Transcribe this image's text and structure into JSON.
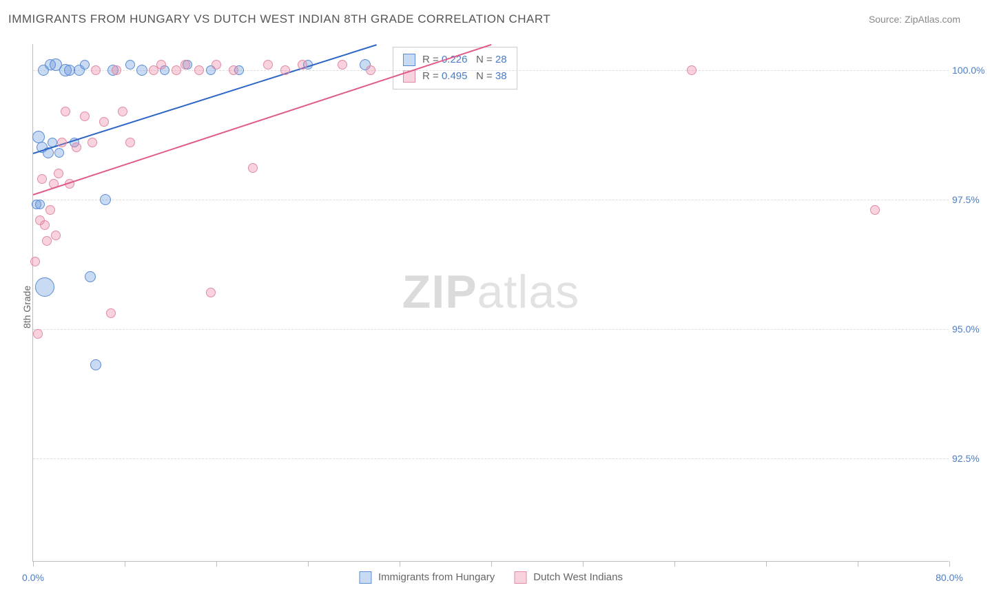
{
  "header": {
    "title": "IMMIGRANTS FROM HUNGARY VS DUTCH WEST INDIAN 8TH GRADE CORRELATION CHART",
    "source_label": "Source: ",
    "source_name": "ZipAtlas.com"
  },
  "chart": {
    "type": "scatter",
    "ylabel": "8th Grade",
    "xlim": [
      0,
      80
    ],
    "ylim": [
      90.5,
      100.5
    ],
    "x_ticks": [
      0,
      8,
      16,
      24,
      32,
      40,
      48,
      56,
      64,
      72,
      80
    ],
    "x_tick_labels": {
      "0": "0.0%",
      "80": "80.0%"
    },
    "y_grid": [
      92.5,
      95.0,
      97.5,
      100.0
    ],
    "y_tick_labels": [
      "92.5%",
      "95.0%",
      "97.5%",
      "100.0%"
    ],
    "background_color": "#ffffff",
    "grid_color": "#dddddd",
    "axis_color": "#bbbbbb",
    "tick_label_color": "#4a7cc9",
    "axis_label_color": "#666666",
    "series": [
      {
        "name": "Immigrants from Hungary",
        "fill": "rgba(100,150,220,0.35)",
        "stroke": "#5b8bd4",
        "trend_color": "#2d66c4",
        "trend": {
          "x1": 0,
          "y1": 98.4,
          "x2": 30,
          "y2": 100.5
        },
        "stats": {
          "r_label": "R = ",
          "r": "0.226",
          "n_label": "N = ",
          "n": "28"
        },
        "points": [
          {
            "x": 0.3,
            "y": 97.4,
            "r": 7
          },
          {
            "x": 0.5,
            "y": 98.7,
            "r": 9
          },
          {
            "x": 0.6,
            "y": 97.4,
            "r": 7
          },
          {
            "x": 0.8,
            "y": 98.5,
            "r": 8
          },
          {
            "x": 0.9,
            "y": 100.0,
            "r": 8
          },
          {
            "x": 1.0,
            "y": 95.8,
            "r": 14
          },
          {
            "x": 1.3,
            "y": 98.4,
            "r": 8
          },
          {
            "x": 1.5,
            "y": 100.1,
            "r": 8
          },
          {
            "x": 1.7,
            "y": 98.6,
            "r": 7
          },
          {
            "x": 2.0,
            "y": 100.1,
            "r": 9
          },
          {
            "x": 2.3,
            "y": 98.4,
            "r": 7
          },
          {
            "x": 2.8,
            "y": 100.0,
            "r": 9
          },
          {
            "x": 3.2,
            "y": 100.0,
            "r": 8
          },
          {
            "x": 3.6,
            "y": 98.6,
            "r": 7
          },
          {
            "x": 4.0,
            "y": 100.0,
            "r": 8
          },
          {
            "x": 4.5,
            "y": 100.1,
            "r": 7
          },
          {
            "x": 5.0,
            "y": 96.0,
            "r": 8
          },
          {
            "x": 5.5,
            "y": 94.3,
            "r": 8
          },
          {
            "x": 6.3,
            "y": 97.5,
            "r": 8
          },
          {
            "x": 7.0,
            "y": 100.0,
            "r": 8
          },
          {
            "x": 8.5,
            "y": 100.1,
            "r": 7
          },
          {
            "x": 9.5,
            "y": 100.0,
            "r": 8
          },
          {
            "x": 11.5,
            "y": 100.0,
            "r": 7
          },
          {
            "x": 13.5,
            "y": 100.1,
            "r": 7
          },
          {
            "x": 15.5,
            "y": 100.0,
            "r": 7
          },
          {
            "x": 18.0,
            "y": 100.0,
            "r": 7
          },
          {
            "x": 24.0,
            "y": 100.1,
            "r": 7
          },
          {
            "x": 29.0,
            "y": 100.1,
            "r": 8
          }
        ]
      },
      {
        "name": "Dutch West Indians",
        "fill": "rgba(235,130,160,0.35)",
        "stroke": "#e08aa5",
        "trend_color": "#e05a8a",
        "trend": {
          "x1": 0,
          "y1": 97.6,
          "x2": 40,
          "y2": 100.5
        },
        "stats": {
          "r_label": "R = ",
          "r": "0.495",
          "n_label": "N = ",
          "n": "38"
        },
        "points": [
          {
            "x": 0.2,
            "y": 96.3,
            "r": 7
          },
          {
            "x": 0.4,
            "y": 94.9,
            "r": 7
          },
          {
            "x": 0.6,
            "y": 97.1,
            "r": 7
          },
          {
            "x": 0.8,
            "y": 97.9,
            "r": 7
          },
          {
            "x": 1.0,
            "y": 97.0,
            "r": 7
          },
          {
            "x": 1.2,
            "y": 96.7,
            "r": 7
          },
          {
            "x": 1.5,
            "y": 97.3,
            "r": 7
          },
          {
            "x": 1.8,
            "y": 97.8,
            "r": 7
          },
          {
            "x": 2.0,
            "y": 96.8,
            "r": 7
          },
          {
            "x": 2.2,
            "y": 98.0,
            "r": 7
          },
          {
            "x": 2.5,
            "y": 98.6,
            "r": 7
          },
          {
            "x": 2.8,
            "y": 99.2,
            "r": 7
          },
          {
            "x": 3.2,
            "y": 97.8,
            "r": 7
          },
          {
            "x": 3.8,
            "y": 98.5,
            "r": 7
          },
          {
            "x": 4.5,
            "y": 99.1,
            "r": 7
          },
          {
            "x": 5.2,
            "y": 98.6,
            "r": 7
          },
          {
            "x": 5.5,
            "y": 100.0,
            "r": 7
          },
          {
            "x": 6.2,
            "y": 99.0,
            "r": 7
          },
          {
            "x": 6.8,
            "y": 95.3,
            "r": 7
          },
          {
            "x": 7.3,
            "y": 100.0,
            "r": 7
          },
          {
            "x": 7.8,
            "y": 99.2,
            "r": 7
          },
          {
            "x": 8.5,
            "y": 98.6,
            "r": 7
          },
          {
            "x": 10.5,
            "y": 100.0,
            "r": 7
          },
          {
            "x": 11.2,
            "y": 100.1,
            "r": 7
          },
          {
            "x": 12.5,
            "y": 100.0,
            "r": 7
          },
          {
            "x": 13.3,
            "y": 100.1,
            "r": 7
          },
          {
            "x": 14.5,
            "y": 100.0,
            "r": 7
          },
          {
            "x": 15.5,
            "y": 95.7,
            "r": 7
          },
          {
            "x": 16.0,
            "y": 100.1,
            "r": 7
          },
          {
            "x": 17.5,
            "y": 100.0,
            "r": 7
          },
          {
            "x": 19.2,
            "y": 98.1,
            "r": 7
          },
          {
            "x": 20.5,
            "y": 100.1,
            "r": 7
          },
          {
            "x": 22.0,
            "y": 100.0,
            "r": 7
          },
          {
            "x": 23.5,
            "y": 100.1,
            "r": 7
          },
          {
            "x": 27.0,
            "y": 100.1,
            "r": 7
          },
          {
            "x": 29.5,
            "y": 100.0,
            "r": 7
          },
          {
            "x": 57.5,
            "y": 100.0,
            "r": 7
          },
          {
            "x": 73.5,
            "y": 97.3,
            "r": 7
          }
        ]
      }
    ],
    "watermark": {
      "zip": "ZIP",
      "atlas": "atlas"
    }
  }
}
